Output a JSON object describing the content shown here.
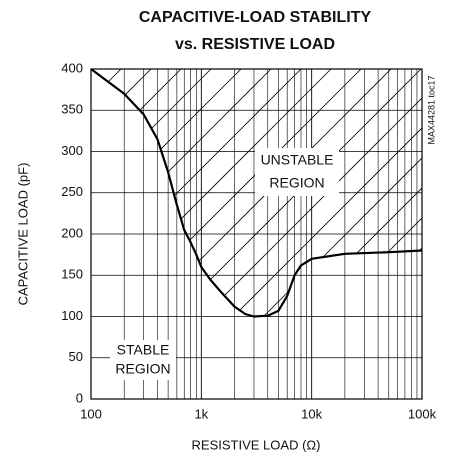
{
  "chart_data": {
    "type": "line",
    "title": [
      "CAPACITIVE-LOAD STABILITY",
      "vs. RESISTIVE LOAD"
    ],
    "figure_id": "MAX44281 toc17",
    "x_label": "RESISTIVE LOAD (Ω)",
    "y_label": "CAPACITIVE LOAD (pF)",
    "x": [
      100,
      200,
      300,
      400,
      500,
      600,
      700,
      800,
      900,
      1000,
      1200,
      1500,
      2000,
      2500,
      3000,
      4000,
      5000,
      6000,
      7000,
      8000,
      10000,
      20000,
      50000,
      100000
    ],
    "series": [
      {
        "name": "stability boundary",
        "color": "#000000",
        "values": [
          400,
          370,
          345,
          315,
          275,
          235,
          205,
          190,
          175,
          160,
          145,
          130,
          112,
          103,
          100,
          101,
          107,
          125,
          150,
          162,
          170,
          176,
          178,
          180
        ]
      }
    ],
    "xlim": [
      100,
      100000
    ],
    "xticks": [
      100,
      {
        "value": 1000,
        "label": "1k"
      },
      {
        "value": 10000,
        "label": "10k"
      },
      {
        "value": 100000,
        "label": "100k"
      }
    ],
    "ylim": [
      0,
      400
    ],
    "yticks": [
      0,
      50,
      100,
      150,
      200,
      250,
      300,
      350,
      400
    ],
    "x_log": true,
    "grid": true,
    "minor_grid": true,
    "hatch_unstable": true,
    "annotations": [
      [
        "UNSTABLE",
        "REGION"
      ],
      [
        "STABLE",
        "REGION"
      ]
    ]
  }
}
